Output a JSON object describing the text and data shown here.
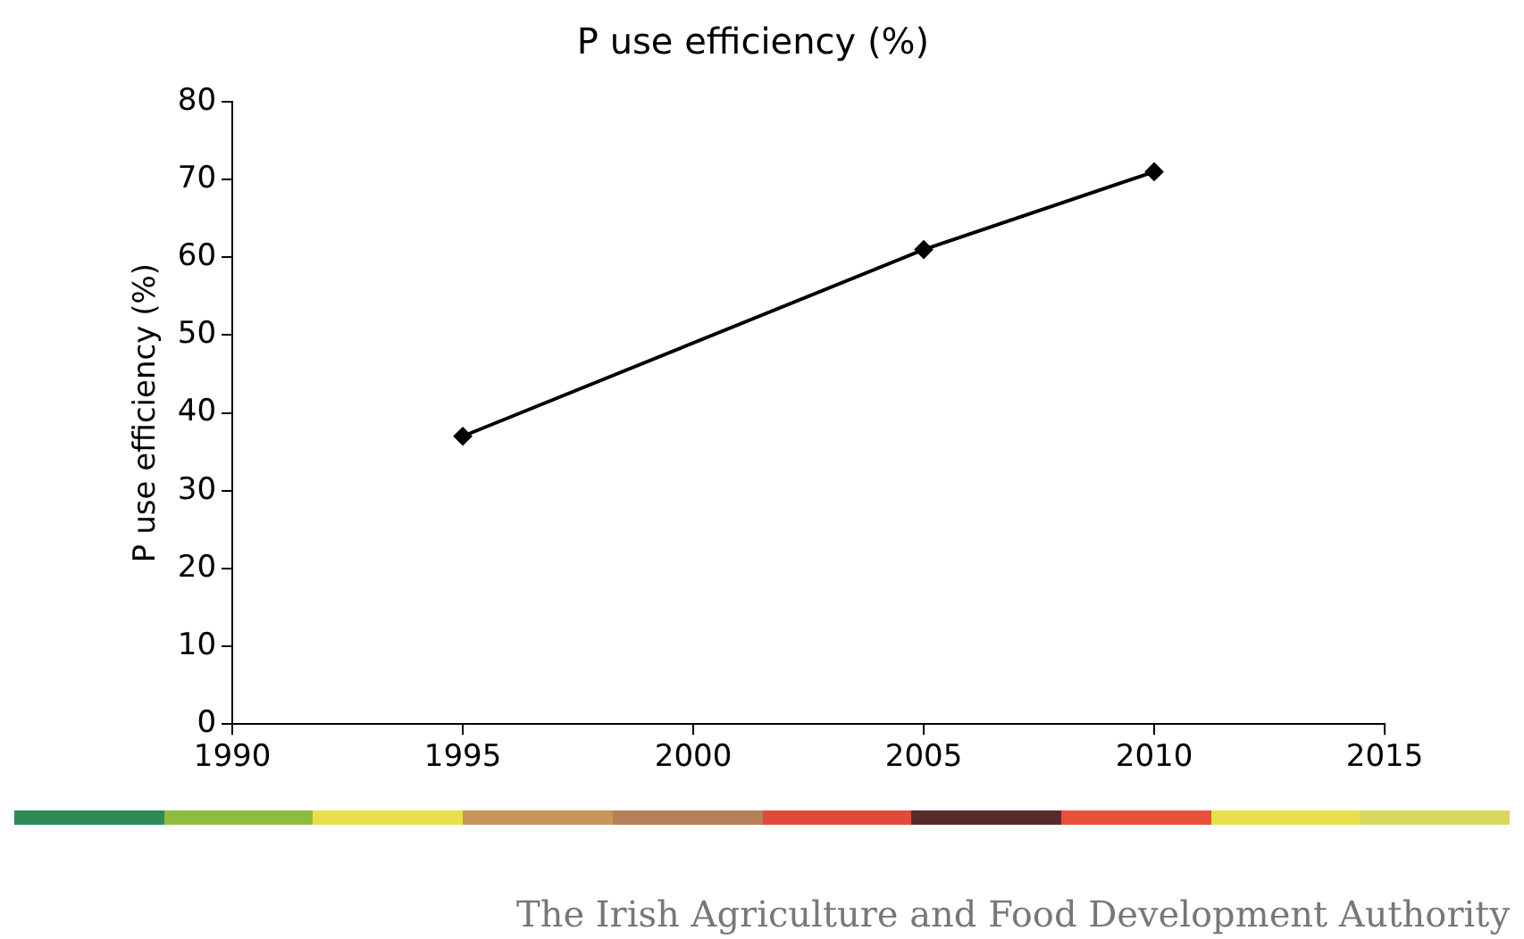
{
  "chart_data": {
    "type": "line",
    "title": "P use efficiency (%)",
    "ylabel": "P use efficiency (%)",
    "x": [
      1995,
      2005,
      2010
    ],
    "series": [
      {
        "color": "#000000",
        "values": [
          37,
          61,
          71
        ]
      }
    ],
    "xlim": [
      1990,
      2015
    ],
    "xticks": [
      1990,
      1995,
      2000,
      2005,
      2010,
      2015
    ],
    "ylim": [
      0,
      80
    ],
    "yticks": [
      0,
      10,
      20,
      30,
      40,
      50,
      60,
      70,
      80
    ],
    "marker": "diamond",
    "line_style": "solid",
    "annotations": [
      "The Irish Agriculture and Food Development Authority"
    ]
  }
}
